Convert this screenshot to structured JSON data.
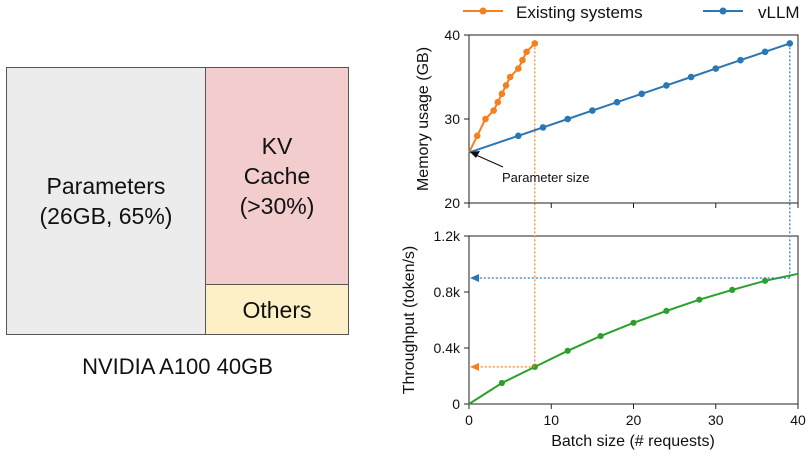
{
  "memory_layout": {
    "blocks": [
      {
        "label_line1": "Parameters",
        "label_line2": "(26GB, 65%)",
        "color": "#ececec"
      },
      {
        "label_line1": "KV",
        "label_line2": "Cache",
        "label_line3": "(>30%)",
        "color": "#f3cccd"
      },
      {
        "label_line1": "Others",
        "color": "#fdf0c6"
      }
    ],
    "caption": "NVIDIA A100 40GB"
  },
  "legend": {
    "existing": "Existing systems",
    "vllm": "vLLM"
  },
  "colors": {
    "existing": "#f5801f",
    "vllm": "#2a77b4",
    "throughput": "#2ca02c"
  },
  "chart_data": [
    {
      "type": "line",
      "title": "",
      "xlabel": "",
      "ylabel": "Memory usage (GB)",
      "xlim": [
        0,
        40
      ],
      "ylim": [
        20,
        40
      ],
      "yticks": [
        20,
        30,
        40
      ],
      "annotation": "Parameter size",
      "series": [
        {
          "name": "Existing systems",
          "x": [
            0,
            1,
            2,
            3,
            3.5,
            4,
            4.5,
            5,
            6,
            6.5,
            7,
            8
          ],
          "y": [
            26,
            28,
            30,
            31,
            32,
            33,
            34,
            35,
            36,
            37,
            38,
            39
          ]
        },
        {
          "name": "vLLM",
          "x": [
            0,
            6,
            9,
            12,
            15,
            18,
            21,
            24,
            27,
            30,
            33,
            36,
            39
          ],
          "y": [
            26,
            28,
            29,
            30,
            31,
            32,
            33,
            34,
            35,
            36,
            37,
            38,
            39
          ]
        }
      ]
    },
    {
      "type": "line",
      "title": "",
      "xlabel": "Batch size (# requests)",
      "ylabel": "Throughput (token/s)",
      "xlim": [
        0,
        40
      ],
      "ylim": [
        0,
        1200
      ],
      "xticks": [
        0,
        10,
        20,
        30,
        40
      ],
      "yticks": [
        "0",
        "0.4k",
        "0.8k",
        "1.2k"
      ],
      "series": [
        {
          "x": [
            0,
            4,
            8,
            12,
            16,
            20,
            24,
            28,
            32,
            36,
            40
          ],
          "y": [
            0,
            150,
            265,
            380,
            485,
            580,
            665,
            745,
            815,
            880,
            930
          ]
        }
      ]
    }
  ]
}
